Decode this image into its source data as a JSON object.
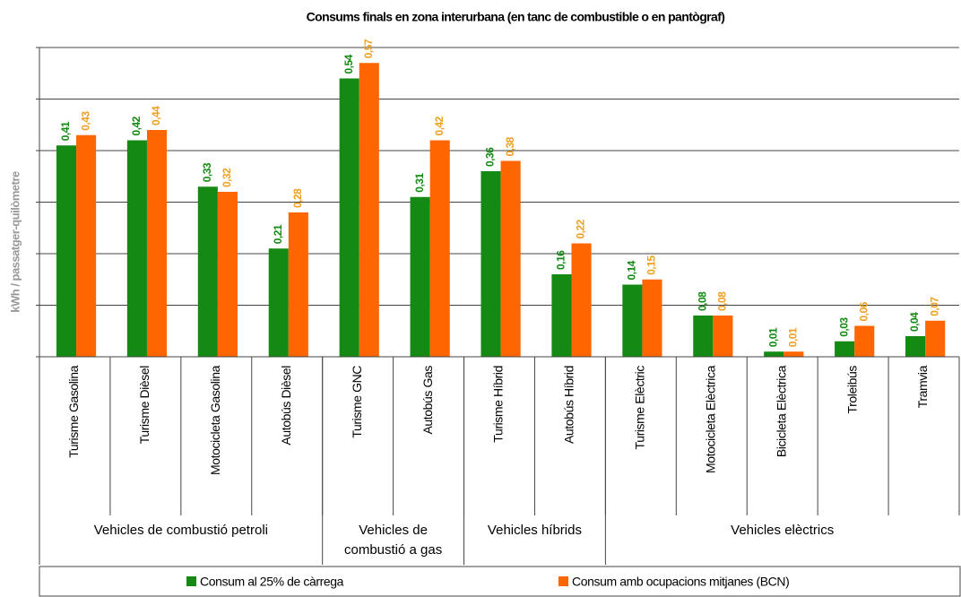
{
  "chart_data": {
    "type": "bar",
    "title": "Consums finals en zona interurbana (en tanc de combustible o en pantògraf)",
    "y_label": "kWh / passatger-quilòmetre",
    "groups": [
      {
        "name": "Vehicles de combustió petroli",
        "categories": [
          "Turisme Gasolina",
          "Turisme Dièsel",
          "Motocicleta Gasolina",
          "Autobús Dièsel"
        ]
      },
      {
        "name": "Vehicles de combustió a gas",
        "categories": [
          "Turisme GNC",
          "Autobús Gas"
        ]
      },
      {
        "name": "Vehicles híbrids",
        "categories": [
          "Turisme Híbrid",
          "Autobús Híbrid"
        ]
      },
      {
        "name": "Vehicles elèctrics",
        "categories": [
          "Turisme Elèctric",
          "Motocicleta Elèctrica",
          "Bicicleta Elèctrica",
          "Troleibús",
          "Tramvia"
        ]
      }
    ],
    "series": [
      {
        "name": "Consum al 25% de càrrega",
        "color": "#148a14",
        "values": [
          0.41,
          0.42,
          0.33,
          0.21,
          0.54,
          0.31,
          0.36,
          0.16,
          0.14,
          0.08,
          0.01,
          0.03,
          0.04
        ],
        "value_labels": [
          "0,41",
          "0,42",
          "0,33",
          "0,21",
          "0,54",
          "0,31",
          "0,36",
          "0,16",
          "0,14",
          "0,08",
          "0,01",
          "0,03",
          "0,04"
        ]
      },
      {
        "name": "Consum amb ocupacions mitjanes (BCN)",
        "color": "#ff6600",
        "values": [
          0.43,
          0.44,
          0.32,
          0.28,
          0.57,
          0.42,
          0.38,
          0.22,
          0.15,
          0.08,
          0.01,
          0.06,
          0.07
        ],
        "value_labels": [
          "0,43",
          "0,44",
          "0,32",
          "0,28",
          "0,57",
          "0,42",
          "0,38",
          "0,22",
          "0,15",
          "0,08",
          "0,01",
          "0,06",
          "0,07"
        ],
        "label_color": "#f0a020"
      }
    ],
    "ylim": [
      0,
      0.6
    ],
    "yticks": [
      0,
      0.1,
      0.2,
      0.3,
      0.4,
      0.5,
      0.6
    ],
    "grid": true
  }
}
